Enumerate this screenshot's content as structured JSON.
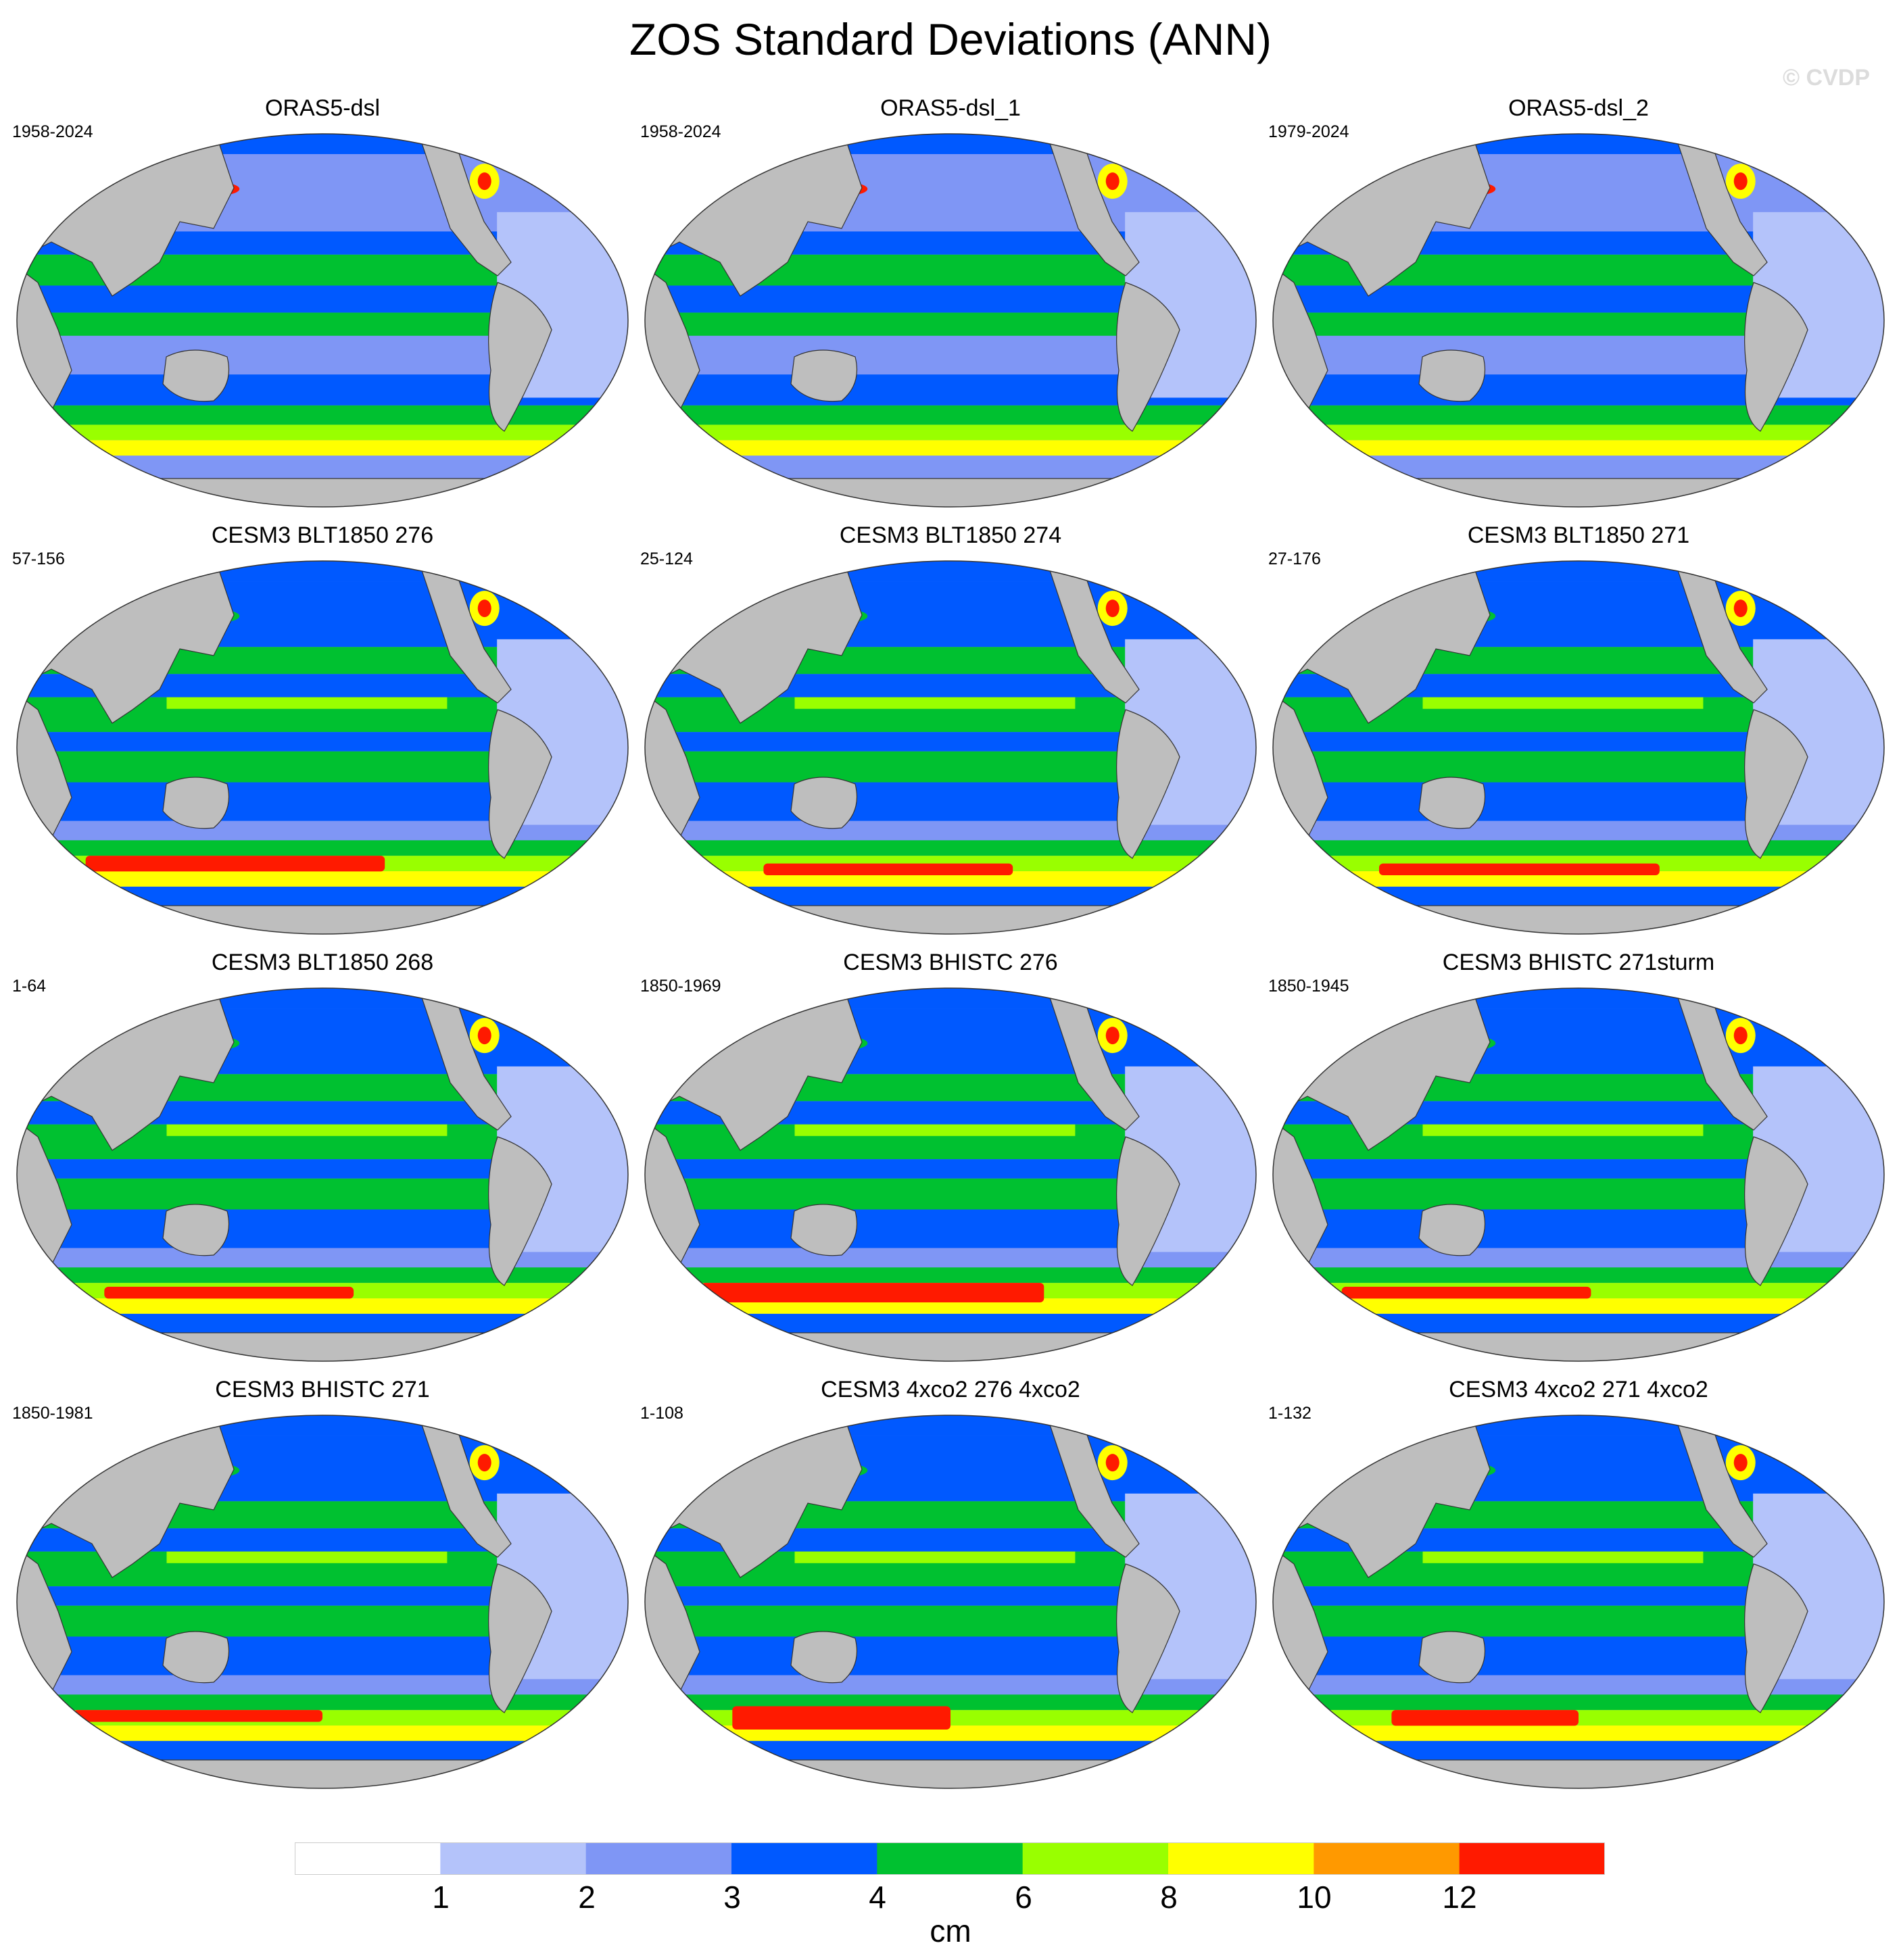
{
  "title": "ZOS Standard Deviations (ANN)",
  "watermark": "© CVDP",
  "colors": {
    "land": "#bebebe",
    "outline": "#333333",
    "bins": [
      "#ffffff",
      "#b4c3fa",
      "#7f96f5",
      "#0059ff",
      "#00c130",
      "#99ff00",
      "#ffff00",
      "#ff9900",
      "#ff1a00"
    ]
  },
  "colorbar": {
    "ticks": [
      "1",
      "2",
      "3",
      "4",
      "6",
      "8",
      "10",
      "12"
    ],
    "units": "cm"
  },
  "panels": [
    {
      "title": "ORAS5-dsl",
      "years": "1958-2024"
    },
    {
      "title": "ORAS5-dsl_1",
      "years": "1958-2024"
    },
    {
      "title": "ORAS5-dsl_2",
      "years": "1979-2024"
    },
    {
      "title": "CESM3 BLT1850 276",
      "years": "57-156"
    },
    {
      "title": "CESM3 BLT1850 274",
      "years": "25-124"
    },
    {
      "title": "CESM3 BLT1850 271",
      "years": "27-176"
    },
    {
      "title": "CESM3 BLT1850 268",
      "years": "1-64"
    },
    {
      "title": "CESM3 BHISTC 276",
      "years": "1850-1969"
    },
    {
      "title": "CESM3 BHISTC 271sturm",
      "years": "1850-1945"
    },
    {
      "title": "CESM3 BHISTC 271",
      "years": "1850-1981"
    },
    {
      "title": "CESM3 4xco2 276 4xco2",
      "years": "1-108"
    },
    {
      "title": "CESM3 4xco2 271 4xco2",
      "years": "1-132"
    }
  ]
}
